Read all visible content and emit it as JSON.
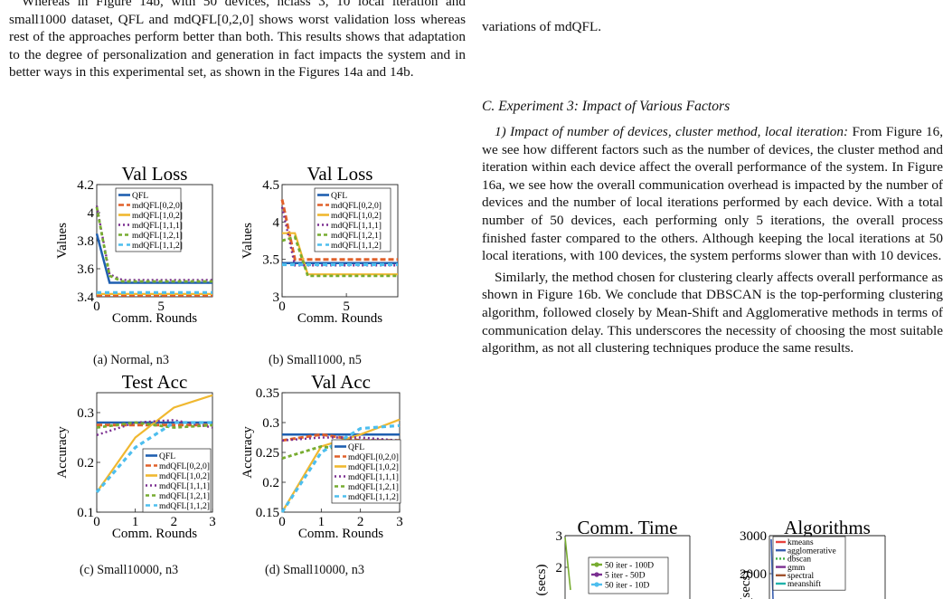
{
  "left_text": {
    "p1_line1": "Whereas in Figure 14b, with 50 devices, nclass 3, 10",
    "p1_rest": "local iteration and small1000 dataset, QFL and mdQFL[0,2,0] shows worst validation loss whereas rest of the approaches perform better than both. This results shows that adaptation to the degree of personalization and generation in fact impacts the system and in better ways in this experimental set, as shown in the Figures 14a and 14b."
  },
  "right_text": {
    "top_line": "variations of mdQFL.",
    "section_heading": "C.  Experiment 3: Impact of Various Factors",
    "sub_heading": "1)  Impact of number of devices, cluster method, local iteration:",
    "p1": "From Figure 16, we see how different factors such as the number of devices, the cluster method and iteration within each device affect the overall performance of the system. In Figure 16a, we see how the overall communication overhead is impacted by the number of devices and the number of local iterations performed by each device. With a total number of 50 devices, each performing only 5 iterations, the overall process finished faster compared to the others. Although keeping the local iterations at 50 local iterations, with 100 devices, the system performs slower than with 10 devices.",
    "p2": "Similarly, the method chosen for clustering clearly affects overall performance as shown in Figure 16b. We conclude that DBSCAN is the top-performing clustering algorithm, followed closely by Mean-Shift and Agglomerative methods in terms of communication delay. This underscores the necessity of choosing the most suitable algorithm, as not all clustering techniques produce the same results."
  },
  "captions": {
    "a": "(a) Normal, n3",
    "b": "(b) Small1000, n5",
    "c": "(c) Small10000, n3",
    "d": "(d) Small10000, n3"
  },
  "colors": {
    "QFL": "#1f5fb0",
    "mdQFL[0,2,0]": "#e0602a",
    "mdQFL[1,0,2]": "#f0b830",
    "mdQFL[1,1,1]": "#7b2f91",
    "mdQFL[1,2,1]": "#77ac30",
    "mdQFL[1,1,2]": "#4dbeee",
    "kmeans": "#e8413c",
    "agglomerative": "#3a5fb0",
    "dbscan": "#3cb043",
    "gmm": "#7b2f91",
    "spectral": "#a0522d",
    "meanshift": "#20b2aa"
  },
  "chart_data": [
    {
      "id": "a",
      "type": "line",
      "title": "Val Loss",
      "xlabel": "Comm. Rounds",
      "ylabel": "Values",
      "xlim": [
        0,
        9
      ],
      "ylim": [
        3.4,
        4.2
      ],
      "xticks": [
        0,
        5
      ],
      "yticks": [
        3.4,
        3.6,
        3.8,
        4.0,
        4.2
      ],
      "ytick_labels": [
        "3.4",
        "3.6",
        "3.8",
        "4",
        "4.2"
      ],
      "legend_position": "top-center",
      "series": [
        {
          "name": "QFL",
          "x": [
            0,
            1,
            2,
            3,
            4,
            5,
            6,
            7,
            8,
            9
          ],
          "y": [
            3.85,
            3.5,
            3.5,
            3.5,
            3.5,
            3.5,
            3.5,
            3.5,
            3.5,
            3.5
          ]
        },
        {
          "name": "mdQFL[0,2,0]",
          "x": [
            0,
            1,
            2,
            3,
            4,
            5,
            6,
            7,
            8,
            9
          ],
          "y": [
            3.41,
            3.41,
            3.41,
            3.41,
            3.41,
            3.41,
            3.41,
            3.41,
            3.41,
            3.41
          ]
        },
        {
          "name": "mdQFL[1,0,2]",
          "x": [
            0,
            1,
            2,
            3,
            4,
            5,
            6,
            7,
            8,
            9
          ],
          "y": [
            3.42,
            3.42,
            3.42,
            3.42,
            3.42,
            3.42,
            3.42,
            3.42,
            3.42,
            3.42
          ]
        },
        {
          "name": "mdQFL[1,1,1]",
          "x": [
            0,
            1,
            2,
            3,
            4,
            5,
            6,
            7,
            8,
            9
          ],
          "y": [
            4.05,
            3.56,
            3.52,
            3.52,
            3.52,
            3.52,
            3.52,
            3.52,
            3.52,
            3.52
          ]
        },
        {
          "name": "mdQFL[1,2,1]",
          "x": [
            0,
            1,
            2,
            3,
            4,
            5,
            6,
            7,
            8,
            9
          ],
          "y": [
            4.04,
            3.55,
            3.51,
            3.51,
            3.51,
            3.51,
            3.51,
            3.51,
            3.51,
            3.51
          ]
        },
        {
          "name": "mdQFL[1,1,2]",
          "x": [
            0,
            1,
            2,
            3,
            4,
            5,
            6,
            7,
            8,
            9
          ],
          "y": [
            3.43,
            3.43,
            3.43,
            3.43,
            3.43,
            3.43,
            3.43,
            3.43,
            3.43,
            3.43
          ]
        }
      ]
    },
    {
      "id": "b",
      "type": "line",
      "title": "Val Loss",
      "xlabel": "Comm. Rounds",
      "ylabel": "Values",
      "xlim": [
        0,
        9
      ],
      "ylim": [
        3,
        4.5
      ],
      "xticks": [
        0,
        5
      ],
      "yticks": [
        3,
        3.5,
        4,
        4.5
      ],
      "ytick_labels": [
        "3",
        "3.5",
        "4",
        "4.5"
      ],
      "legend_position": "top-center",
      "series": [
        {
          "name": "QFL",
          "x": [
            0,
            1,
            2,
            3,
            4,
            5,
            6,
            7,
            8,
            9
          ],
          "y": [
            3.45,
            3.45,
            3.45,
            3.45,
            3.45,
            3.45,
            3.45,
            3.45,
            3.45,
            3.45
          ]
        },
        {
          "name": "mdQFL[0,2,0]",
          "x": [
            0,
            1,
            2,
            3,
            4,
            5,
            6,
            7,
            8,
            9
          ],
          "y": [
            4.3,
            3.5,
            3.5,
            3.5,
            3.5,
            3.5,
            3.5,
            3.5,
            3.5,
            3.5
          ]
        },
        {
          "name": "mdQFL[1,0,2]",
          "x": [
            0,
            1,
            2,
            3,
            4,
            5,
            6,
            7,
            8,
            9
          ],
          "y": [
            3.85,
            3.85,
            3.3,
            3.3,
            3.3,
            3.3,
            3.3,
            3.3,
            3.3,
            3.3
          ]
        },
        {
          "name": "mdQFL[1,1,1]",
          "x": [
            0,
            1,
            2,
            3,
            4,
            5,
            6,
            7,
            8,
            9
          ],
          "y": [
            4.2,
            3.42,
            3.42,
            3.42,
            3.42,
            3.42,
            3.42,
            3.42,
            3.42,
            3.42
          ]
        },
        {
          "name": "mdQFL[1,2,1]",
          "x": [
            0,
            1,
            2,
            3,
            4,
            5,
            6,
            7,
            8,
            9
          ],
          "y": [
            3.75,
            3.8,
            3.28,
            3.28,
            3.28,
            3.28,
            3.28,
            3.28,
            3.28,
            3.28
          ]
        },
        {
          "name": "mdQFL[1,1,2]",
          "x": [
            0,
            1,
            2,
            3,
            4,
            5,
            6,
            7,
            8,
            9
          ],
          "y": [
            3.43,
            3.43,
            3.43,
            3.43,
            3.43,
            3.43,
            3.43,
            3.43,
            3.43,
            3.43
          ]
        }
      ]
    },
    {
      "id": "c",
      "type": "line",
      "title": "Test Acc",
      "xlabel": "Comm. Rounds",
      "ylabel": "Accuracy",
      "xlim": [
        0,
        3
      ],
      "ylim": [
        0.1,
        0.34
      ],
      "xticks": [
        0,
        1,
        2,
        3
      ],
      "yticks": [
        0.1,
        0.2,
        0.3
      ],
      "ytick_labels": [
        "0.1",
        "0.2",
        "0.3"
      ],
      "legend_position": "bottom-right",
      "series": [
        {
          "name": "QFL",
          "x": [
            0,
            1,
            2,
            3
          ],
          "y": [
            0.28,
            0.28,
            0.28,
            0.28
          ]
        },
        {
          "name": "mdQFL[0,2,0]",
          "x": [
            0,
            1,
            2,
            3
          ],
          "y": [
            0.275,
            0.275,
            0.275,
            0.275
          ]
        },
        {
          "name": "mdQFL[1,0,2]",
          "x": [
            0,
            1,
            2,
            3
          ],
          "y": [
            0.14,
            0.25,
            0.31,
            0.335
          ]
        },
        {
          "name": "mdQFL[1,1,1]",
          "x": [
            0,
            1,
            2,
            3
          ],
          "y": [
            0.255,
            0.28,
            0.285,
            0.27
          ]
        },
        {
          "name": "mdQFL[1,2,1]",
          "x": [
            0,
            1,
            2,
            3
          ],
          "y": [
            0.27,
            0.28,
            0.27,
            0.275
          ]
        },
        {
          "name": "mdQFL[1,1,2]",
          "x": [
            0,
            1,
            2,
            3
          ],
          "y": [
            0.14,
            0.23,
            0.28,
            0.28
          ]
        }
      ]
    },
    {
      "id": "d",
      "type": "line",
      "title": "Val Acc",
      "xlabel": "Comm. Rounds",
      "ylabel": "Accuracy",
      "xlim": [
        0,
        3
      ],
      "ylim": [
        0.15,
        0.35
      ],
      "xticks": [
        0,
        1,
        2,
        3
      ],
      "yticks": [
        0.15,
        0.2,
        0.25,
        0.3,
        0.35
      ],
      "ytick_labels": [
        "0.15",
        "0.2",
        "0.25",
        "0.3",
        "0.35"
      ],
      "legend_position": "bottom-right",
      "series": [
        {
          "name": "QFL",
          "x": [
            0,
            1,
            2,
            3
          ],
          "y": [
            0.28,
            0.28,
            0.28,
            0.28
          ]
        },
        {
          "name": "mdQFL[0,2,0]",
          "x": [
            0,
            1,
            2,
            3
          ],
          "y": [
            0.27,
            0.28,
            0.27,
            0.27
          ]
        },
        {
          "name": "mdQFL[1,0,2]",
          "x": [
            0,
            1,
            2,
            3
          ],
          "y": [
            0.15,
            0.26,
            0.28,
            0.305
          ]
        },
        {
          "name": "mdQFL[1,1,1]",
          "x": [
            0,
            1,
            2,
            3
          ],
          "y": [
            0.27,
            0.275,
            0.275,
            0.27
          ]
        },
        {
          "name": "mdQFL[1,2,1]",
          "x": [
            0,
            1,
            2,
            3
          ],
          "y": [
            0.24,
            0.26,
            0.25,
            0.27
          ]
        },
        {
          "name": "mdQFL[1,1,2]",
          "x": [
            0,
            1,
            2,
            3
          ],
          "y": [
            0.15,
            0.25,
            0.29,
            0.295
          ]
        }
      ]
    },
    {
      "id": "e",
      "type": "line",
      "title": "Comm. Time",
      "xlabel": "",
      "ylabel": "(secs)",
      "ylim": [
        0,
        3
      ],
      "yticks": [
        2,
        3
      ],
      "ytick_labels": [
        "2",
        "3"
      ],
      "legend_position": "center",
      "series": [
        {
          "name": "50 iter - 100D"
        },
        {
          "name": "5 iter - 50D"
        },
        {
          "name": "50 iter - 10D"
        }
      ]
    },
    {
      "id": "f",
      "type": "line",
      "title": "Algorithms",
      "xlabel": "",
      "ylabel": "(secs)",
      "ylim": [
        0,
        3000
      ],
      "yticks": [
        2000,
        3000
      ],
      "ytick_labels": [
        "2000",
        "3000"
      ],
      "legend_position": "top-right",
      "series": [
        {
          "name": "kmeans"
        },
        {
          "name": "agglomerative"
        },
        {
          "name": "dbscan"
        },
        {
          "name": "gmm"
        },
        {
          "name": "spectral"
        },
        {
          "name": "meanshift"
        }
      ]
    }
  ]
}
